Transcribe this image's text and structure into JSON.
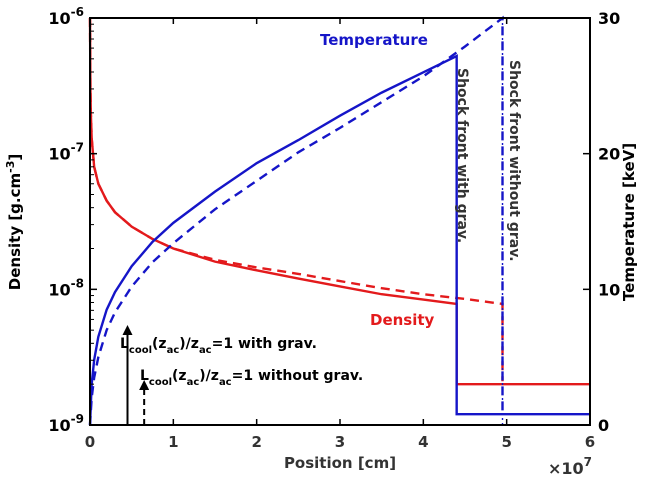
{
  "chart_data": {
    "type": "line",
    "x_axis": {
      "label": "Position [cm]",
      "range": [
        0,
        6
      ],
      "ticks": [
        "0",
        "1",
        "2",
        "3",
        "4",
        "5",
        "6"
      ],
      "multiplier": "×10",
      "multiplier_exp": "7"
    },
    "y_left": {
      "label_main": "Density [g.cm",
      "label_sup": "-3",
      "label_end": "]",
      "scale": "log",
      "range": [
        1e-09,
        1e-06
      ],
      "ticks": [
        {
          "value": 1e-09,
          "base": "10",
          "exp": "-9"
        },
        {
          "value": 1e-08,
          "base": "10",
          "exp": "-8"
        },
        {
          "value": 1e-07,
          "base": "10",
          "exp": "-7"
        },
        {
          "value": 1e-06,
          "base": "10",
          "exp": "-6"
        }
      ]
    },
    "y_right": {
      "label": "Temperature [keV]",
      "scale": "linear",
      "range": [
        0,
        30
      ],
      "ticks": [
        "0",
        "10",
        "20",
        "30"
      ]
    },
    "colors": {
      "density": "#e31a1c",
      "temperature": "#1515c8",
      "axis": "#000000"
    },
    "series": [
      {
        "name": "Density",
        "axis": "left",
        "style": "solid",
        "color_key": "density",
        "points": [
          [
            0.0,
            1e-06
          ],
          [
            0.005,
            3e-07
          ],
          [
            0.01,
            2e-07
          ],
          [
            0.02,
            1.3e-07
          ],
          [
            0.05,
            8e-08
          ],
          [
            0.1,
            6e-08
          ],
          [
            0.2,
            4.5e-08
          ],
          [
            0.3,
            3.7e-08
          ],
          [
            0.5,
            2.9e-08
          ],
          [
            0.75,
            2.35e-08
          ],
          [
            1.0,
            2e-08
          ],
          [
            1.5,
            1.6e-08
          ],
          [
            2.0,
            1.38e-08
          ],
          [
            2.5,
            1.2e-08
          ],
          [
            3.0,
            1.05e-08
          ],
          [
            3.5,
            9.2e-09
          ],
          [
            4.0,
            8.4e-09
          ],
          [
            4.4,
            7.8e-09
          ],
          [
            4.4,
            2e-09
          ],
          [
            6.0,
            2e-09
          ]
        ]
      },
      {
        "name": "",
        "axis": "left",
        "style": "dashed",
        "color_key": "density",
        "points": [
          [
            0.0,
            1e-06
          ],
          [
            0.005,
            3e-07
          ],
          [
            0.01,
            2e-07
          ],
          [
            0.02,
            1.3e-07
          ],
          [
            0.05,
            8e-08
          ],
          [
            0.1,
            6e-08
          ],
          [
            0.2,
            4.5e-08
          ],
          [
            0.3,
            3.7e-08
          ],
          [
            0.5,
            2.9e-08
          ],
          [
            0.75,
            2.35e-08
          ],
          [
            1.0,
            2e-08
          ],
          [
            1.5,
            1.65e-08
          ],
          [
            2.0,
            1.45e-08
          ],
          [
            2.5,
            1.3e-08
          ],
          [
            3.0,
            1.15e-08
          ],
          [
            3.5,
            1.02e-08
          ],
          [
            4.0,
            9.2e-09
          ],
          [
            4.5,
            8.5e-09
          ],
          [
            4.95,
            7.8e-09
          ],
          [
            4.95,
            2.1e-09
          ]
        ]
      },
      {
        "name": "Temperature",
        "axis": "right",
        "style": "solid",
        "color_key": "temperature",
        "points": [
          [
            0.0,
            0.0
          ],
          [
            0.02,
            3.0
          ],
          [
            0.05,
            4.8
          ],
          [
            0.1,
            6.5
          ],
          [
            0.2,
            8.5
          ],
          [
            0.3,
            9.8
          ],
          [
            0.5,
            11.7
          ],
          [
            0.75,
            13.5
          ],
          [
            1.0,
            14.9
          ],
          [
            1.5,
            17.2
          ],
          [
            2.0,
            19.3
          ],
          [
            2.5,
            21.0
          ],
          [
            3.0,
            22.8
          ],
          [
            3.5,
            24.5
          ],
          [
            4.0,
            26.0
          ],
          [
            4.4,
            27.2
          ],
          [
            4.4,
            0.8
          ],
          [
            6.0,
            0.8
          ]
        ]
      },
      {
        "name": "",
        "axis": "right",
        "style": "dashed",
        "color_key": "temperature",
        "points": [
          [
            0.0,
            0.0
          ],
          [
            0.02,
            2.0
          ],
          [
            0.05,
            3.5
          ],
          [
            0.1,
            5.0
          ],
          [
            0.2,
            7.0
          ],
          [
            0.3,
            8.3
          ],
          [
            0.5,
            10.2
          ],
          [
            0.75,
            12.0
          ],
          [
            1.0,
            13.4
          ],
          [
            1.5,
            15.9
          ],
          [
            2.0,
            18.0
          ],
          [
            2.5,
            20.1
          ],
          [
            3.0,
            21.9
          ],
          [
            3.5,
            23.8
          ],
          [
            4.0,
            25.7
          ],
          [
            4.5,
            27.9
          ],
          [
            4.95,
            30.0
          ],
          [
            4.95,
            0.8
          ]
        ]
      }
    ],
    "annotations": {
      "temperature_label": "Temperature",
      "density_label": "Density",
      "shock_with_grav": "Shock front with grav.",
      "shock_without_grav": "Shock front without grav.",
      "cool_with_grav": {
        "L": "L",
        "cool": "cool",
        "paren1": "(z",
        "ac1": "ac",
        "mid": ")/z",
        "ac2": "ac",
        "tail": "=1 with grav."
      },
      "cool_without_grav": {
        "L": "L",
        "cool": "cool",
        "paren1": "(z",
        "ac1": "ac",
        "mid": ")/z",
        "ac2": "ac",
        "tail": "=1 without grav."
      },
      "arrow_with_x": 0.45,
      "arrow_without_x": 0.65
    }
  }
}
